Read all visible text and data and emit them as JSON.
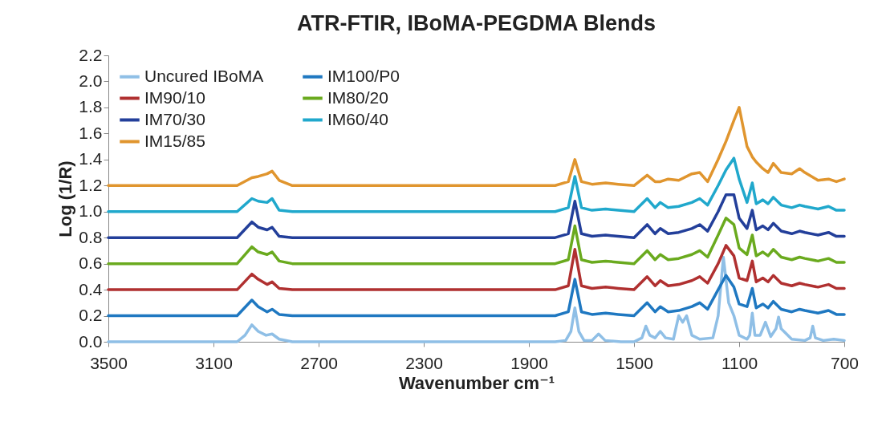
{
  "chart_data": {
    "type": "line",
    "title": "ATR-FTIR, IBoMA-PEGDMA  Blends",
    "xlabel": "Wavenumber cm⁻¹",
    "ylabel": "Log (1/R)",
    "x": [
      3500,
      3100,
      3010,
      2954,
      2930,
      2896,
      2877,
      2850,
      2800,
      2700,
      1800,
      1750,
      1725,
      1700,
      1660,
      1608,
      1560,
      1500,
      1450,
      1420,
      1400,
      1370,
      1330,
      1280,
      1250,
      1220,
      1180,
      1150,
      1120,
      1100,
      1070,
      1050,
      1035,
      1010,
      990,
      970,
      940,
      900,
      870,
      850,
      800,
      760,
      730,
      700
    ],
    "xlim": [
      3500,
      700
    ],
    "xticks": [
      3500,
      3100,
      2700,
      2300,
      1900,
      1500,
      1100,
      700
    ],
    "ylim": [
      0,
      2.2
    ],
    "yticks": [
      {
        "value": 0,
        "label": "0.0"
      },
      0.2,
      0.4,
      0.6,
      0.8,
      {
        "value": 1,
        "label": "1.0"
      },
      1.2,
      1.4,
      1.6,
      1.8,
      {
        "value": 2,
        "label": "2.0"
      },
      2.2
    ],
    "grid": false,
    "legend": "top left",
    "marker": "none",
    "line_style": "solid",
    "series": [
      {
        "name": "Uncured IBoMA",
        "color": "#8fbfe6",
        "x": [
          3500,
          3100,
          3010,
          2980,
          2954,
          2930,
          2900,
          2877,
          2850,
          2800,
          1800,
          1760,
          1740,
          1725,
          1710,
          1690,
          1660,
          1635,
          1610,
          1550,
          1500,
          1470,
          1455,
          1440,
          1420,
          1400,
          1380,
          1350,
          1330,
          1315,
          1300,
          1280,
          1250,
          1200,
          1180,
          1160,
          1140,
          1120,
          1100,
          1070,
          1060,
          1050,
          1040,
          1020,
          1000,
          980,
          960,
          950,
          940,
          900,
          850,
          830,
          820,
          810,
          780,
          740,
          700
        ],
        "values": [
          0,
          0,
          0,
          0.05,
          0.13,
          0.08,
          0.05,
          0.06,
          0.02,
          0,
          0,
          0.01,
          0.08,
          0.26,
          0.08,
          0.01,
          0.01,
          0.06,
          0.01,
          0,
          0,
          0.03,
          0.12,
          0.05,
          0.03,
          0.08,
          0.03,
          0.02,
          0.2,
          0.15,
          0.2,
          0.05,
          0.02,
          0.03,
          0.2,
          0.65,
          0.3,
          0.2,
          0.05,
          0.02,
          0.05,
          0.22,
          0.05,
          0.05,
          0.15,
          0.04,
          0.1,
          0.19,
          0.1,
          0.02,
          0.01,
          0.03,
          0.12,
          0.03,
          0.01,
          0.02,
          0.01
        ]
      },
      {
        "name": "IM100/P0",
        "color": "#1f78c1",
        "values": [
          0.2,
          0.2,
          0.2,
          0.32,
          0.27,
          0.23,
          0.25,
          0.21,
          0.2,
          0.2,
          0.2,
          0.23,
          0.48,
          0.23,
          0.21,
          0.22,
          0.21,
          0.2,
          0.3,
          0.23,
          0.27,
          0.23,
          0.24,
          0.27,
          0.3,
          0.25,
          0.4,
          0.51,
          0.42,
          0.29,
          0.27,
          0.41,
          0.26,
          0.29,
          0.26,
          0.31,
          0.25,
          0.23,
          0.25,
          0.24,
          0.22,
          0.24,
          0.21,
          0.21
        ]
      },
      {
        "name": "IM90/10",
        "color": "#b03030",
        "values": [
          0.4,
          0.4,
          0.4,
          0.52,
          0.48,
          0.44,
          0.46,
          0.41,
          0.4,
          0.4,
          0.4,
          0.43,
          0.71,
          0.43,
          0.41,
          0.42,
          0.41,
          0.4,
          0.5,
          0.43,
          0.47,
          0.43,
          0.44,
          0.47,
          0.5,
          0.45,
          0.6,
          0.74,
          0.66,
          0.49,
          0.47,
          0.62,
          0.46,
          0.49,
          0.46,
          0.51,
          0.45,
          0.43,
          0.45,
          0.44,
          0.42,
          0.44,
          0.41,
          0.41
        ]
      },
      {
        "name": "IM80/20",
        "color": "#6aaa1e",
        "values": [
          0.6,
          0.6,
          0.6,
          0.73,
          0.69,
          0.67,
          0.69,
          0.62,
          0.6,
          0.6,
          0.6,
          0.63,
          0.89,
          0.63,
          0.61,
          0.62,
          0.61,
          0.6,
          0.7,
          0.63,
          0.67,
          0.63,
          0.64,
          0.67,
          0.7,
          0.65,
          0.82,
          0.95,
          0.9,
          0.72,
          0.67,
          0.82,
          0.66,
          0.69,
          0.66,
          0.71,
          0.65,
          0.63,
          0.65,
          0.64,
          0.62,
          0.64,
          0.61,
          0.61
        ]
      },
      {
        "name": "IM70/30",
        "color": "#233f9a",
        "values": [
          0.8,
          0.8,
          0.8,
          0.92,
          0.88,
          0.86,
          0.88,
          0.81,
          0.8,
          0.8,
          0.8,
          0.83,
          1.08,
          0.83,
          0.81,
          0.82,
          0.81,
          0.8,
          0.9,
          0.83,
          0.87,
          0.83,
          0.84,
          0.87,
          0.9,
          0.85,
          1.0,
          1.13,
          1.13,
          0.95,
          0.87,
          1.01,
          0.86,
          0.89,
          0.86,
          0.91,
          0.85,
          0.83,
          0.85,
          0.84,
          0.82,
          0.84,
          0.81,
          0.81
        ]
      },
      {
        "name": "IM60/40",
        "color": "#20a8cc",
        "values": [
          1.0,
          1.0,
          1.0,
          1.1,
          1.08,
          1.07,
          1.1,
          1.01,
          1.0,
          1.0,
          1.0,
          1.03,
          1.27,
          1.03,
          1.01,
          1.02,
          1.01,
          1.0,
          1.1,
          1.03,
          1.07,
          1.03,
          1.04,
          1.07,
          1.1,
          1.05,
          1.2,
          1.32,
          1.41,
          1.25,
          1.07,
          1.22,
          1.06,
          1.09,
          1.06,
          1.11,
          1.05,
          1.03,
          1.05,
          1.04,
          1.02,
          1.04,
          1.01,
          1.01
        ]
      },
      {
        "name": "IM15/85",
        "color": "#e0952e",
        "values": [
          1.2,
          1.2,
          1.2,
          1.26,
          1.27,
          1.29,
          1.31,
          1.24,
          1.2,
          1.2,
          1.2,
          1.23,
          1.4,
          1.23,
          1.21,
          1.22,
          1.21,
          1.2,
          1.28,
          1.23,
          1.23,
          1.25,
          1.24,
          1.29,
          1.3,
          1.23,
          1.4,
          1.54,
          1.7,
          1.8,
          1.5,
          1.42,
          1.38,
          1.33,
          1.3,
          1.37,
          1.3,
          1.29,
          1.33,
          1.3,
          1.24,
          1.25,
          1.23,
          1.25
        ]
      }
    ]
  }
}
